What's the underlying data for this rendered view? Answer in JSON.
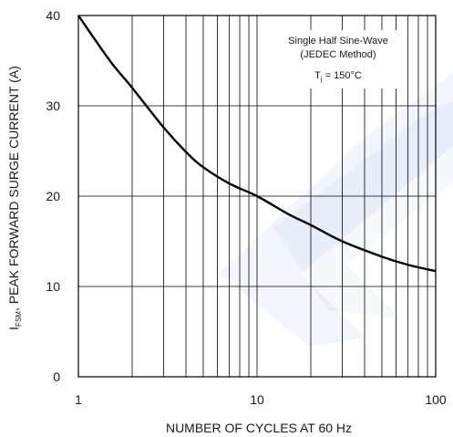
{
  "chart_data": {
    "type": "line",
    "title": "",
    "xlabel": "NUMBER OF CYCLES AT 60 Hz",
    "ylabel_prefix": "I",
    "ylabel_sub": "FSM",
    "ylabel_rest": ", PEAK FORWARD SURGE CURRENT (A)",
    "xscale": "log",
    "xlim": [
      1,
      100
    ],
    "ylim": [
      0,
      40
    ],
    "x_ticks": [
      "1",
      "10",
      "100"
    ],
    "y_ticks": [
      "0",
      "10",
      "20",
      "30",
      "40"
    ],
    "grid": true,
    "annotation": {
      "line1": "Single Half Sine-Wave",
      "line2": "(JEDEC Method)",
      "tj_prefix": "T",
      "tj_sub": "j",
      "tj_rest": " = 150°C",
      "placement": "top-right"
    },
    "series": [
      {
        "x": [
          1,
          1.5,
          2,
          3,
          4,
          5,
          7,
          10,
          15,
          20,
          30,
          50,
          70,
          100
        ],
        "y": [
          40,
          35,
          32,
          27.6,
          24.9,
          23.2,
          21.4,
          20,
          18,
          16.8,
          15,
          13.3,
          12.4,
          11.7
        ]
      }
    ],
    "colors": {
      "curve": "#000000",
      "grid": "#000000",
      "watermark": "#3a6fd8"
    }
  }
}
